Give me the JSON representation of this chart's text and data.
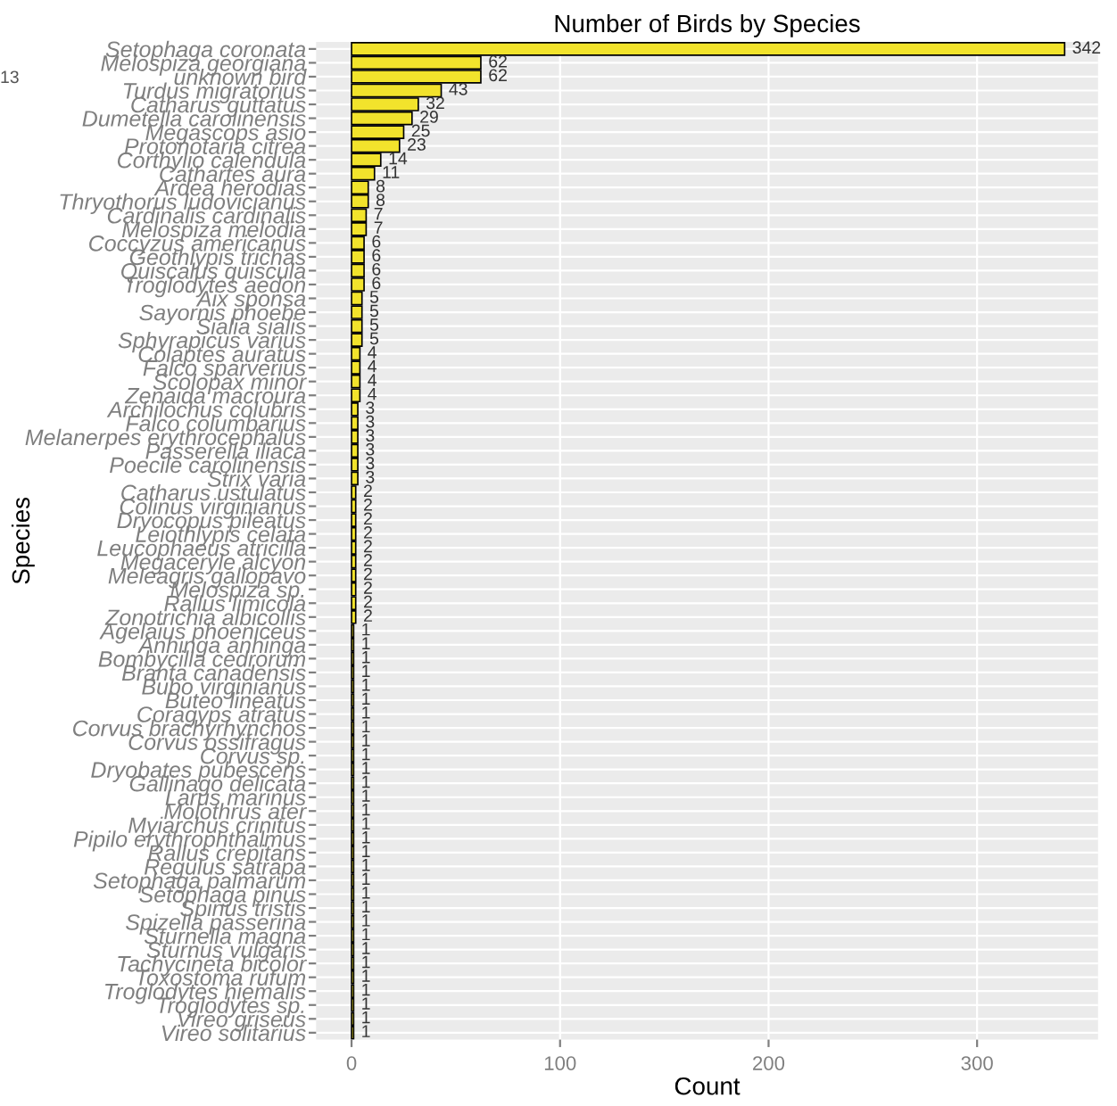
{
  "chart_data": {
    "type": "bar",
    "orientation": "horizontal",
    "title": "Number of Birds by Species",
    "xlabel": "Count",
    "ylabel": "Species",
    "categories": [
      "Setophaga coronata",
      "Melospiza georgiana",
      "unknown bird",
      "Turdus migratorius",
      "Catharus guttatus",
      "Dumetella carolinensis",
      "Megascops asio",
      "Protonotaria citrea",
      "Corthylio calendula",
      "Cathartes aura",
      "Ardea herodias",
      "Thryothorus ludovicianus",
      "Cardinalis cardinalis",
      "Melospiza melodia",
      "Coccyzus americanus",
      "Geothlypis trichas",
      "Quiscalus quiscula",
      "Troglodytes aedon",
      "Aix sponsa",
      "Sayornis phoebe",
      "Sialia sialis",
      "Sphyrapicus varius",
      "Colaptes auratus",
      "Falco sparverius",
      "Scolopax minor",
      "Zenaida macroura",
      "Archilochus colubris",
      "Falco columbarius",
      "Melanerpes erythrocephalus",
      "Passerella iliaca",
      "Poecile carolinensis",
      "Strix varia",
      "Catharus ustulatus",
      "Colinus virginianus",
      "Dryocopus pileatus",
      "Leiothlypis celata",
      "Leucophaeus atricilla",
      "Megaceryle alcyon",
      "Meleagris gallopavo",
      "Melospiza sp.",
      "Rallus limicola",
      "Zonotrichia albicollis",
      "Agelaius phoeniceus",
      "Anhinga anhinga",
      "Bombycilla cedrorum",
      "Branta canadensis",
      "Bubo virginianus",
      "Buteo lineatus",
      "Coragyps atratus",
      "Corvus brachyrhynchos",
      "Corvus ossifragus",
      "Corvus sp.",
      "Dryobates pubescens",
      "Gallinago delicata",
      "Larus marinus",
      "Molothrus ater",
      "Myiarchus crinitus",
      "Pipilo erythrophthalmus",
      "Rallus crepitans",
      "Regulus satrapa",
      "Setophaga palmarum",
      "Setophaga pinus",
      "Spinus tristis",
      "Spizella passerina",
      "Sturnella magna",
      "Sturnus vulgaris",
      "Tachycineta bicolor",
      "Toxostoma rufum",
      "Troglodytes hiemalis",
      "Troglodytes sp.",
      "Vireo griseus",
      "Vireo solitarius"
    ],
    "values": [
      342,
      62,
      62,
      43,
      32,
      29,
      25,
      23,
      14,
      11,
      8,
      8,
      7,
      7,
      6,
      6,
      6,
      6,
      5,
      5,
      5,
      5,
      4,
      4,
      4,
      4,
      3,
      3,
      3,
      3,
      3,
      3,
      2,
      2,
      2,
      2,
      2,
      2,
      2,
      2,
      2,
      2,
      1,
      1,
      1,
      1,
      1,
      1,
      1,
      1,
      1,
      1,
      1,
      1,
      1,
      1,
      1,
      1,
      1,
      1,
      1,
      1,
      1,
      1,
      1,
      1,
      1,
      1,
      1,
      1,
      1,
      1
    ],
    "color": "#f2e32c",
    "data_labels": true,
    "xlim": [
      -17,
      358
    ],
    "xticks": [
      0,
      100,
      200,
      300
    ],
    "grid": true,
    "annotations": [
      "13"
    ]
  }
}
